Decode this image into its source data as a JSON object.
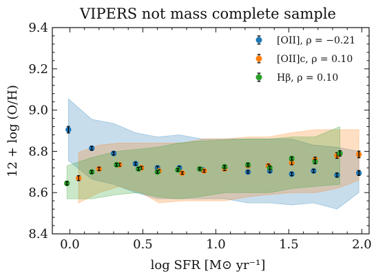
{
  "chart_data": {
    "type": "scatter",
    "title": "VIPERS not mass complete sample",
    "xlabel": "log SFR [M⊙ yr⁻¹]",
    "ylabel": "12 + log (O/H)",
    "xlim": [
      -0.12,
      2.05
    ],
    "ylim": [
      8.4,
      9.4
    ],
    "xticks": [
      0.0,
      0.5,
      1.0,
      1.5,
      2.0
    ],
    "xtick_labels": [
      "0.0",
      "0.5",
      "1.0",
      "1.5",
      "2.0"
    ],
    "yticks": [
      8.4,
      8.6,
      8.8,
      9.0,
      9.2,
      9.4
    ],
    "ytick_labels": [
      "8.4",
      "8.6",
      "8.8",
      "9.0",
      "9.2",
      "9.4"
    ],
    "grid": false,
    "legend_position": "top-right",
    "series": [
      {
        "name": "[OII], ρ = −0.21",
        "color": "#1f77b4",
        "x": [
          -0.01,
          0.15,
          0.3,
          0.45,
          0.6,
          0.75,
          0.91,
          1.06,
          1.22,
          1.37,
          1.52,
          1.67,
          1.83,
          1.98
        ],
        "y": [
          8.905,
          8.815,
          8.79,
          8.74,
          8.72,
          8.72,
          8.71,
          8.72,
          8.7,
          8.705,
          8.69,
          8.705,
          8.685,
          8.695
        ],
        "err": [
          0.016,
          0.009,
          0.008,
          0.007,
          0.008,
          0.007,
          0.006,
          0.008,
          0.006,
          0.007,
          0.008,
          0.008,
          0.01,
          0.012
        ],
        "band_x": [
          -0.01,
          0.15,
          0.3,
          0.45,
          0.6,
          0.75,
          0.91,
          1.06,
          1.22,
          1.37,
          1.52,
          1.67,
          1.83,
          1.98
        ],
        "band_upper": [
          9.055,
          8.955,
          8.935,
          8.89,
          8.87,
          8.88,
          8.86,
          8.86,
          8.86,
          8.86,
          8.86,
          8.83,
          8.82,
          8.8
        ],
        "band_lower": [
          8.755,
          8.665,
          8.64,
          8.6,
          8.57,
          8.57,
          8.57,
          8.57,
          8.55,
          8.55,
          8.54,
          8.55,
          8.52,
          8.6
        ]
      },
      {
        "name": "[OII]c, ρ = 0.10",
        "color": "#ff7f0e",
        "x": [
          0.06,
          0.2,
          0.34,
          0.49,
          0.61,
          0.77,
          0.92,
          1.06,
          1.22,
          1.36,
          1.52,
          1.68,
          1.83,
          1.98
        ],
        "y": [
          8.67,
          8.715,
          8.735,
          8.72,
          8.705,
          8.695,
          8.705,
          8.715,
          8.73,
          8.73,
          8.745,
          8.76,
          8.78,
          8.785
        ],
        "err": [
          0.012,
          0.008,
          0.007,
          0.007,
          0.007,
          0.006,
          0.006,
          0.008,
          0.007,
          0.008,
          0.01,
          0.012,
          0.014,
          0.016
        ],
        "band_x": [
          0.06,
          0.2,
          0.34,
          0.49,
          0.61,
          0.77,
          0.92,
          1.06,
          1.22,
          1.36,
          1.52,
          1.68,
          1.83,
          1.98
        ],
        "band_upper": [
          8.795,
          8.83,
          8.84,
          8.84,
          8.84,
          8.84,
          8.86,
          8.86,
          8.87,
          8.87,
          8.89,
          8.905,
          8.905,
          8.905
        ],
        "band_lower": [
          8.55,
          8.6,
          8.63,
          8.6,
          8.55,
          8.56,
          8.56,
          8.56,
          8.58,
          8.59,
          8.6,
          8.6,
          8.62,
          8.66
        ]
      },
      {
        "name": "Hβ, ρ = 0.10",
        "color": "#2ca02c",
        "x": [
          -0.02,
          0.15,
          0.32,
          0.47,
          0.6,
          0.74,
          0.89,
          1.06,
          1.22,
          1.37,
          1.52,
          1.68,
          1.85
        ],
        "y": [
          8.645,
          8.7,
          8.735,
          8.715,
          8.7,
          8.71,
          8.715,
          8.725,
          8.735,
          8.72,
          8.765,
          8.75,
          8.79
        ],
        "err": [
          0.008,
          0.007,
          0.007,
          0.007,
          0.006,
          0.006,
          0.006,
          0.007,
          0.007,
          0.008,
          0.008,
          0.01,
          0.013
        ],
        "band_x": [
          -0.02,
          0.15,
          0.32,
          0.47,
          0.6,
          0.74,
          0.89,
          1.06,
          1.22,
          1.37,
          1.52,
          1.68,
          1.85
        ],
        "band_upper": [
          8.73,
          8.77,
          8.8,
          8.81,
          8.82,
          8.84,
          8.85,
          8.855,
          8.86,
          8.86,
          8.87,
          8.87,
          8.92
        ],
        "band_lower": [
          8.57,
          8.57,
          8.59,
          8.6,
          8.58,
          8.57,
          8.58,
          8.6,
          8.6,
          8.6,
          8.62,
          8.63,
          8.64
        ]
      }
    ]
  }
}
